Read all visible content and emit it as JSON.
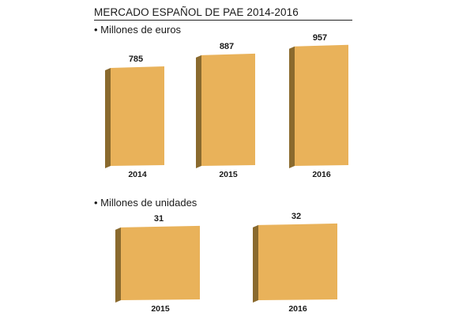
{
  "title": "MERCADO ESPAÑOL DE PAE 2014-2016",
  "colors": {
    "face": "#e9b25a",
    "side": "#8a6a2e",
    "text": "#1a1a1a"
  },
  "chart_data": [
    {
      "type": "bar",
      "subtitle": "• Millones de euros",
      "categories": [
        "2014",
        "2015",
        "2016"
      ],
      "values": [
        785,
        887,
        957
      ],
      "value_labels": [
        "785",
        "887",
        "957"
      ],
      "ylim": [
        0,
        1000
      ],
      "grid": false
    },
    {
      "type": "bar",
      "subtitle": "• Millones de unidades",
      "categories": [
        "2015",
        "2016"
      ],
      "values": [
        31,
        32
      ],
      "value_labels": [
        "31",
        "32"
      ],
      "ylim": [
        0,
        35
      ],
      "grid": false
    }
  ]
}
